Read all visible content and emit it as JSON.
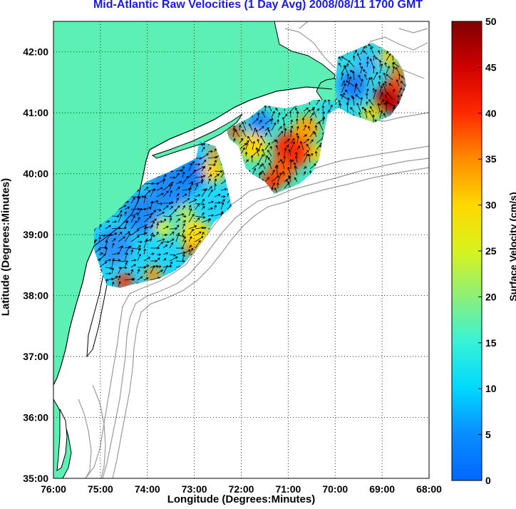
{
  "title": "Mid-Atlantic Raw Velocities (1 Day Avg) 2008/08/11 1700 GMT",
  "axes": {
    "xlabel": "Longitude (Degrees:Minutes)",
    "ylabel": "Latitude (Degrees:Minutes)",
    "lon_range": [
      -76,
      -68
    ],
    "lat_range": [
      35,
      42.5
    ],
    "x_ticks": [
      "76:00",
      "75:00",
      "74:00",
      "73:00",
      "72:00",
      "71:00",
      "70:00",
      "69:00",
      "68:00"
    ],
    "y_ticks": [
      "35:00",
      "36:00",
      "37:00",
      "38:00",
      "39:00",
      "40:00",
      "41:00",
      "42:00"
    ],
    "grid": "dotted"
  },
  "colorbar": {
    "label": "Surface Velocity (cm/s)",
    "range": [
      0,
      50
    ],
    "ticks": [
      "0",
      "5",
      "10",
      "15",
      "20",
      "25",
      "30",
      "35",
      "40",
      "45",
      "50"
    ]
  },
  "colors": {
    "land": "#5cf0b4",
    "coast": "#000000",
    "bathymetry": "#9a9a9a",
    "title": "#1a1ae6"
  },
  "map_features": {
    "land": "US East Coast from New England to North Carolina",
    "bathymetry_contours": true,
    "velocity_vectors": true,
    "regions": [
      "southern shelf patch",
      "central shelf patch",
      "southern New England patch"
    ]
  }
}
